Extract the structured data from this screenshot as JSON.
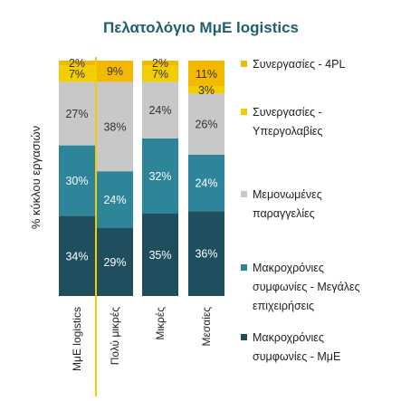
{
  "chart_data": {
    "type": "bar",
    "stacked": true,
    "title": "Πελατολόγιο ΜμΕ logistics",
    "ylabel": "% κύκλου εργασιών",
    "xlabel": "",
    "ylim": [
      0,
      100
    ],
    "grid": false,
    "legend_position": "right",
    "categories": [
      "ΜμΕ logistics",
      "Πολύ μικρές",
      "Μικρές",
      "Μεσαίες"
    ],
    "series": [
      {
        "name": "Μακροχρόνιες συμφωνίες - ΜμΕ",
        "color": "#1f4e5f",
        "label_color": "#ffffff",
        "values": [
          34,
          29,
          35,
          36
        ],
        "labels": [
          "34%",
          "29%",
          "35%",
          "36%"
        ]
      },
      {
        "name": "Μακροχρόνιες συμφωνίες - Μεγάλες επιχειρήσεις",
        "color": "#2e8499",
        "label_color": "#ffffff",
        "values": [
          30,
          24,
          32,
          24
        ],
        "labels": [
          "30%",
          "24%",
          "32%",
          "24%"
        ]
      },
      {
        "name": "Μεμονωμένες παραγγελίες",
        "color": "#c8c8c8",
        "label_color": "#333333",
        "values": [
          27,
          38,
          24,
          26
        ],
        "labels": [
          "27%",
          "38%",
          "24%",
          "26%"
        ]
      },
      {
        "name": "Συνεργασίες - Υπεργολαβίες",
        "color": "#f2cd00",
        "label_color": "#333333",
        "values": [
          7,
          0,
          7,
          3
        ],
        "labels": [
          "7%",
          "",
          "7%",
          "3%"
        ]
      },
      {
        "name": "Συνεργασίες -  4PL",
        "color": "#f5b800",
        "label_color": "#333333",
        "values": [
          2,
          9,
          2,
          11
        ],
        "labels": [
          "2%",
          "9%",
          "2%",
          "11%"
        ]
      }
    ],
    "separator_after_category": 0
  },
  "legend": [
    {
      "lines": [
        "Συνεργασίες -  4PL"
      ],
      "color": "#f5b800"
    },
    {
      "lines": [
        "Συνεργασίες -",
        "Υπεργολαβίες"
      ],
      "color": "#f2cd00"
    },
    {
      "lines": [
        "Μεμονωμένες",
        "παραγγελίες"
      ],
      "color": "#c8c8c8"
    },
    {
      "lines": [
        "Μακροχρόνιες",
        "συμφωνίες - Μεγάλες",
        "επιχειρήσεις"
      ],
      "color": "#2e8499"
    },
    {
      "lines": [
        "Μακροχρόνιες",
        "συμφωνίες - ΜμΕ"
      ],
      "color": "#1f4e5f"
    }
  ]
}
